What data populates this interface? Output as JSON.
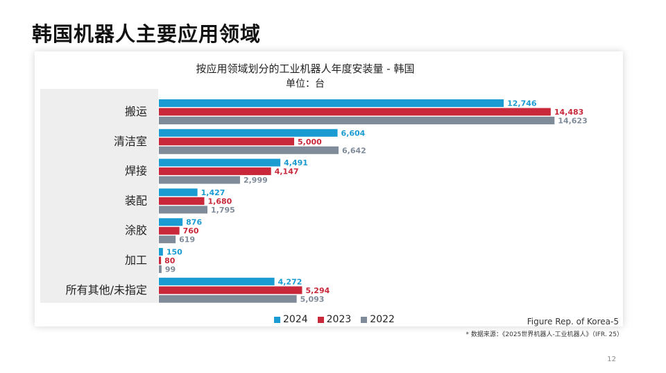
{
  "slide": {
    "title": "韩国机器人主要应用领域",
    "figure_ref": "Figure Rep. of Korea-5",
    "source_note": "* 数据来源：《2025世界机器人-工业机器人》（IFR. 25）",
    "page_number": "12"
  },
  "colors": {
    "series_2024": "#1a9bd1",
    "series_2023": "#c8283a",
    "series_2022": "#7f8b99"
  },
  "chart_data": {
    "type": "bar",
    "orientation": "horizontal",
    "title": "按应用领域划分的工业机器人年度安装量 - 韩国",
    "subtitle": "单位：台",
    "categories": [
      "搬运",
      "清洁室",
      "焊接",
      "装配",
      "涂胶",
      "加工",
      "所有其他/未指定"
    ],
    "series": [
      {
        "name": "2024",
        "values": [
          12746,
          6604,
          4491,
          1427,
          876,
          150,
          4272
        ],
        "labels": [
          "12,746",
          "6,604",
          "4,491",
          "1,427",
          "876",
          "150",
          "4,272"
        ]
      },
      {
        "name": "2023",
        "values": [
          14483,
          5000,
          4147,
          1680,
          760,
          80,
          5294
        ],
        "labels": [
          "14,483",
          "5,000",
          "4,147",
          "1,680",
          "760",
          "80",
          "5,294"
        ]
      },
      {
        "name": "2022",
        "values": [
          14623,
          6642,
          2999,
          1795,
          619,
          99,
          5093
        ],
        "labels": [
          "14,623",
          "6,642",
          "2,999",
          "1,795",
          "619",
          "99",
          "5,093"
        ]
      }
    ],
    "xlim": [
      0,
      15000
    ],
    "grid": false,
    "legend_position": "bottom"
  }
}
